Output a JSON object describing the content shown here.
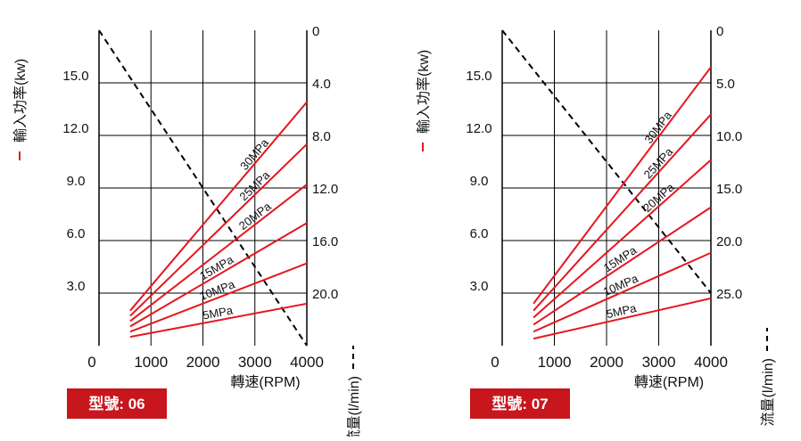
{
  "colors": {
    "grid": "#000000",
    "power_line": "#e5161e",
    "flow_line": "#000000",
    "badge_bg": "#c8161d",
    "badge_text": "#ffffff"
  },
  "chart_data": [
    {
      "type": "line",
      "model_label": "型號: 06",
      "left_axis_label": "輸入功率(kw)",
      "right_axis_label": "流量(l/min)",
      "xlabel": "轉速(RPM)",
      "x_ticks": [
        "0",
        "1000",
        "2000",
        "3000",
        "4000"
      ],
      "xlim": [
        0,
        4000
      ],
      "y_ticks_left": [
        "3.0",
        "6.0",
        "9.0",
        "12.0",
        "15.0"
      ],
      "ylim_left": [
        0,
        18
      ],
      "y_ticks_right": [
        "0",
        "4.0",
        "8.0",
        "12.0",
        "16.0",
        "20.0"
      ],
      "ylim_right": [
        0,
        24
      ],
      "grid": true,
      "series": [
        {
          "name": "30MPa",
          "x": [
            600,
            4000
          ],
          "y": [
            2.0,
            13.9
          ]
        },
        {
          "name": "25MPa",
          "x": [
            600,
            4000
          ],
          "y": [
            1.7,
            11.5
          ]
        },
        {
          "name": "20MPa",
          "x": [
            600,
            4000
          ],
          "y": [
            1.4,
            9.2
          ]
        },
        {
          "name": "15MPa",
          "x": [
            600,
            4000
          ],
          "y": [
            1.1,
            7.0
          ]
        },
        {
          "name": "10MPa",
          "x": [
            600,
            4000
          ],
          "y": [
            0.8,
            4.7
          ]
        },
        {
          "name": "5MPa",
          "x": [
            600,
            4000
          ],
          "y": [
            0.5,
            2.4
          ]
        }
      ],
      "flow": {
        "x": [
          0,
          4000
        ],
        "y_right": [
          0,
          24
        ]
      }
    },
    {
      "type": "line",
      "model_label": "型號: 07",
      "left_axis_label": "輸入功率(kw)",
      "right_axis_label": "流量(l/min)",
      "xlabel": "轉速(RPM)",
      "x_ticks": [
        "0",
        "1000",
        "2000",
        "3000",
        "4000"
      ],
      "xlim": [
        0,
        4000
      ],
      "y_ticks_left": [
        "3.0",
        "6.0",
        "9.0",
        "12.0",
        "15.0"
      ],
      "ylim_left": [
        0,
        18
      ],
      "y_ticks_right": [
        "0",
        "5.0",
        "10.0",
        "15.0",
        "20.0",
        "25.0"
      ],
      "ylim_right": [
        0,
        30
      ],
      "grid": true,
      "series": [
        {
          "name": "30MPa",
          "x": [
            600,
            4000
          ],
          "y": [
            2.4,
            15.9
          ]
        },
        {
          "name": "25MPa",
          "x": [
            600,
            4000
          ],
          "y": [
            2.0,
            13.2
          ]
        },
        {
          "name": "20MPa",
          "x": [
            600,
            4000
          ],
          "y": [
            1.6,
            10.6
          ]
        },
        {
          "name": "15MPa",
          "x": [
            600,
            4000
          ],
          "y": [
            1.2,
            7.9
          ]
        },
        {
          "name": "10MPa",
          "x": [
            600,
            4000
          ],
          "y": [
            0.8,
            5.3
          ]
        },
        {
          "name": "5MPa",
          "x": [
            600,
            4000
          ],
          "y": [
            0.4,
            2.7
          ]
        }
      ],
      "flow": {
        "x": [
          0,
          4000
        ],
        "y_right": [
          0,
          25
        ]
      }
    }
  ]
}
